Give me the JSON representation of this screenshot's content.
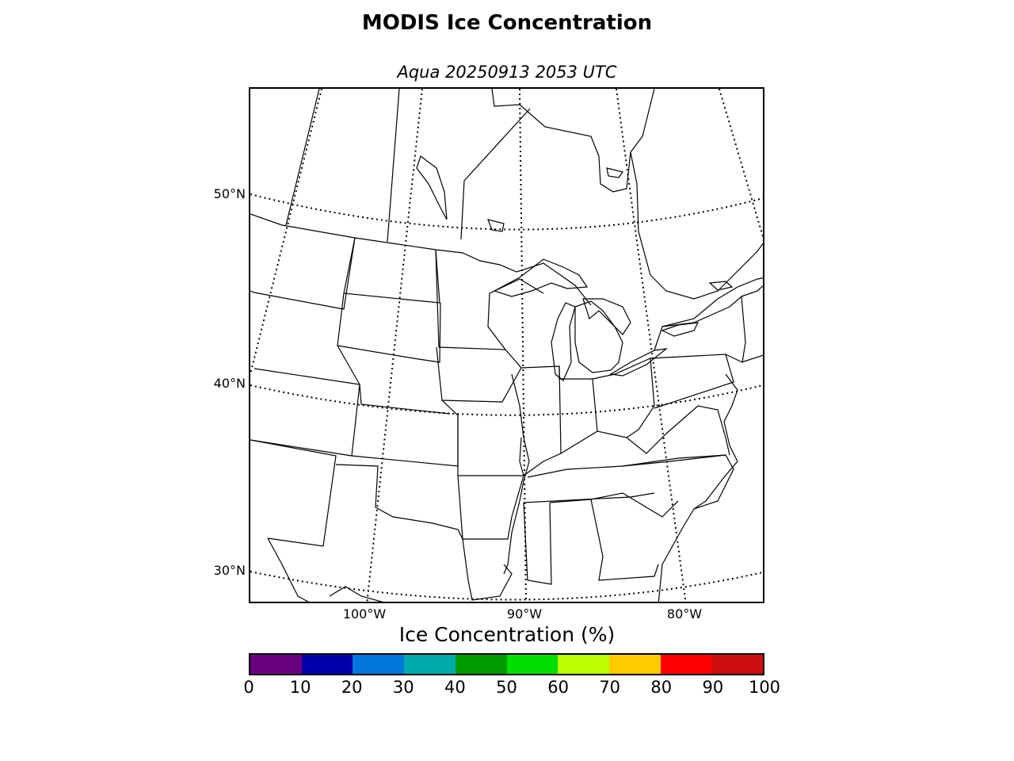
{
  "title": "MODIS Ice Concentration",
  "subtitle": "Aqua 20250913 2053 UTC",
  "map": {
    "parallels": [
      {
        "label": "50°N"
      },
      {
        "label": "40°N"
      },
      {
        "label": "30°N"
      }
    ],
    "meridians": [
      {
        "label": "100°W"
      },
      {
        "label": "90°W"
      },
      {
        "label": "80°W"
      }
    ],
    "line_color": "#000000",
    "background": "#ffffff"
  },
  "colorbar": {
    "title": "Ice Concentration (%)",
    "colors": [
      "#6a0080",
      "#0000aa",
      "#0077dd",
      "#00aaaa",
      "#009900",
      "#00dd00",
      "#bbff00",
      "#ffcc00",
      "#ff0000",
      "#cc1010"
    ],
    "ticks": [
      "0",
      "10",
      "20",
      "30",
      "40",
      "50",
      "60",
      "70",
      "80",
      "90",
      "100"
    ]
  }
}
